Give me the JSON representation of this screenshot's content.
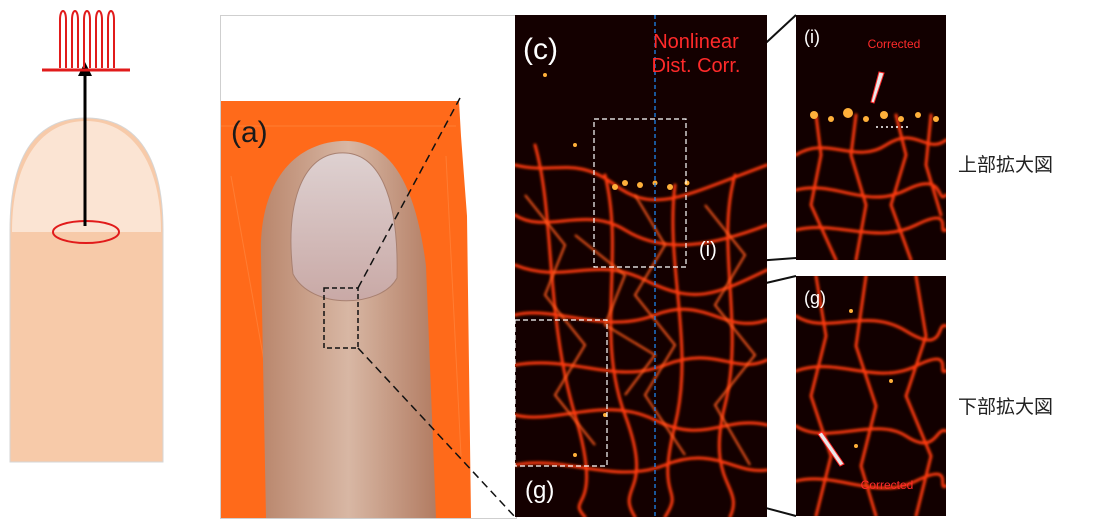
{
  "panels": {
    "photo_label": "(a)",
    "main_label": "(c)",
    "main_annotation_line1": "Nonlinear",
    "main_annotation_line2": "Dist. Corr.",
    "roi_top_label": "(i)",
    "roi_bottom_label": "(g)",
    "zoom_top_label": "(i)",
    "zoom_top_note": "Corrected",
    "zoom_bottom_label": "(g)",
    "zoom_bottom_note": "Corrected"
  },
  "side_labels": {
    "top": "上部拡大図",
    "bottom": "下部拡大図"
  },
  "colors": {
    "skin_light": "#fbe4d3",
    "skin": "#f7caa9",
    "orange": "#ff6a1a",
    "vessel_red": "#ff3a0a",
    "vessel_yellow": "#ffd23a",
    "annotation_red": "#ff2a2a",
    "guide_blue": "#1e90ff"
  }
}
